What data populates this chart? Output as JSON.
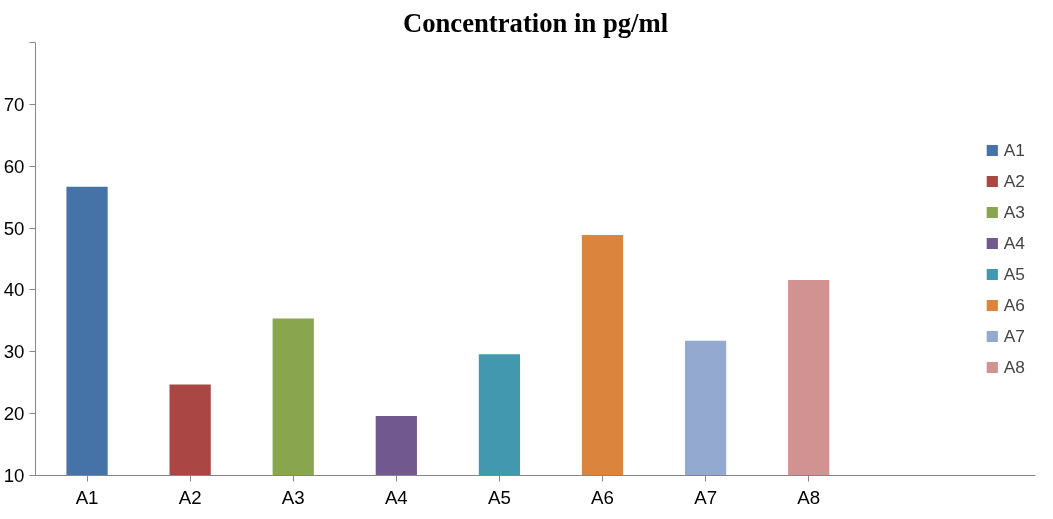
{
  "chart_data": {
    "type": "bar",
    "title": "Concentration in pg/ml",
    "categories": [
      "A1",
      "A2",
      "A3",
      "A4",
      "A5",
      "A6",
      "A7",
      "A8"
    ],
    "series": [
      {
        "name": "A1",
        "color": "#4572a7",
        "values": [
          56.7,
          null,
          null,
          null,
          null,
          null,
          null,
          null
        ]
      },
      {
        "name": "A2",
        "color": "#aa4643",
        "values": [
          null,
          24.7,
          null,
          null,
          null,
          null,
          null,
          null
        ]
      },
      {
        "name": "A3",
        "color": "#89a54e",
        "values": [
          null,
          null,
          35.4,
          null,
          null,
          null,
          null,
          null
        ]
      },
      {
        "name": "A4",
        "color": "#71588f",
        "values": [
          null,
          null,
          null,
          19.6,
          null,
          null,
          null,
          null
        ]
      },
      {
        "name": "A5",
        "color": "#4198af",
        "values": [
          null,
          null,
          null,
          null,
          29.6,
          null,
          null,
          null
        ]
      },
      {
        "name": "A6",
        "color": "#db843d",
        "values": [
          null,
          null,
          null,
          null,
          null,
          48.9,
          null,
          null
        ]
      },
      {
        "name": "A7",
        "color": "#93a9cf",
        "values": [
          null,
          null,
          null,
          null,
          null,
          null,
          31.8,
          null
        ]
      },
      {
        "name": "A8",
        "color": "#d19392",
        "values": [
          null,
          null,
          null,
          null,
          null,
          null,
          null,
          41.6
        ]
      }
    ],
    "ylim": [
      10,
      80
    ],
    "yticks": [
      10,
      20,
      30,
      40,
      50,
      60,
      70,
      {
        "value": 80,
        "label": null
      }
    ],
    "legend": "right"
  }
}
